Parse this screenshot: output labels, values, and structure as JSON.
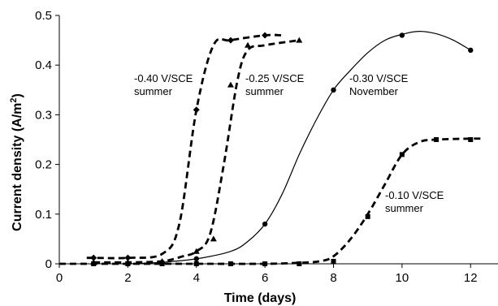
{
  "chart_data": {
    "type": "line",
    "title": "",
    "xlabel": "Time (days)",
    "ylabel_main": "Current density (A/m",
    "ylabel_sup": "2",
    "ylabel_end": ")",
    "xlim": [
      0,
      12.8
    ],
    "ylim": [
      0,
      0.5
    ],
    "xticks": [
      "0",
      "2",
      "4",
      "6",
      "8",
      "10",
      "12"
    ],
    "yticks": [
      "0",
      "0.1",
      "0.2",
      "0.3",
      "0.4",
      "0.5"
    ],
    "grid": false,
    "legend": "none",
    "series": [
      {
        "line1": "-0.40 V/SCE",
        "line2": "summer",
        "style": "dashed",
        "marker": "diamond",
        "x": [
          0.8,
          1.0,
          2.0,
          3.0,
          3.5,
          4.0,
          4.5,
          5.0,
          6.0,
          6.5
        ],
        "y": [
          0.012,
          0.012,
          0.012,
          0.02,
          0.08,
          0.31,
          0.44,
          0.45,
          0.46,
          0.46
        ],
        "markers_x": [
          1.0,
          2.0,
          4.0,
          5.0,
          6.0
        ],
        "markers_y": [
          0.012,
          0.012,
          0.31,
          0.45,
          0.46
        ]
      },
      {
        "line1": "-0.25 V/SCE",
        "line2": "summer",
        "style": "dashed",
        "marker": "triangle",
        "x": [
          1.0,
          2.0,
          3.0,
          3.6,
          4.0,
          4.4,
          4.8,
          5.2,
          5.5,
          6.0,
          7.0
        ],
        "y": [
          0.003,
          0.003,
          0.005,
          0.015,
          0.025,
          0.06,
          0.2,
          0.37,
          0.43,
          0.44,
          0.45
        ],
        "markers_x": [
          1.0,
          2.0,
          3.0,
          4.0,
          4.5,
          5.0,
          5.5,
          7.0
        ],
        "markers_y": [
          0.003,
          0.003,
          0.005,
          0.025,
          0.05,
          0.36,
          0.44,
          0.45
        ]
      },
      {
        "line1": "-0.30 V/SCE",
        "line2": "November",
        "style": "solid",
        "marker": "circle",
        "x": [
          2.0,
          3.0,
          4.0,
          5.0,
          5.5,
          6.0,
          6.5,
          7.0,
          7.5,
          8.0,
          8.5,
          9.0,
          9.5,
          10.0,
          10.5,
          11.0,
          11.5,
          12.0
        ],
        "y": [
          0.0,
          0.003,
          0.01,
          0.025,
          0.045,
          0.08,
          0.14,
          0.22,
          0.29,
          0.35,
          0.39,
          0.425,
          0.45,
          0.462,
          0.468,
          0.463,
          0.45,
          0.43
        ],
        "markers_x": [
          2.0,
          3.0,
          4.0,
          6.0,
          8.0,
          10.0,
          12.0
        ],
        "markers_y": [
          0.0,
          0.003,
          0.01,
          0.08,
          0.35,
          0.46,
          0.43
        ]
      },
      {
        "line1": "-0.10 V/SCE",
        "line2": "summer",
        "style": "dashed",
        "marker": "square",
        "x": [
          0.0,
          2.0,
          4.0,
          6.0,
          7.0,
          7.6,
          8.0,
          8.5,
          9.0,
          9.5,
          10.0,
          10.5,
          11.0,
          12.0,
          12.3
        ],
        "y": [
          0.0,
          0.0,
          0.0,
          0.0,
          0.002,
          0.005,
          0.015,
          0.05,
          0.1,
          0.16,
          0.22,
          0.245,
          0.25,
          0.252,
          0.252
        ],
        "markers_x": [
          1.0,
          2.0,
          3.0,
          4.0,
          5.0,
          6.0,
          7.0,
          8.0,
          9.0,
          10.0,
          11.0,
          12.0
        ],
        "markers_y": [
          0.0,
          0.0,
          0.0,
          0.0,
          0.0,
          0.0,
          0.0,
          0.005,
          0.095,
          0.22,
          0.25,
          0.25
        ]
      }
    ]
  }
}
